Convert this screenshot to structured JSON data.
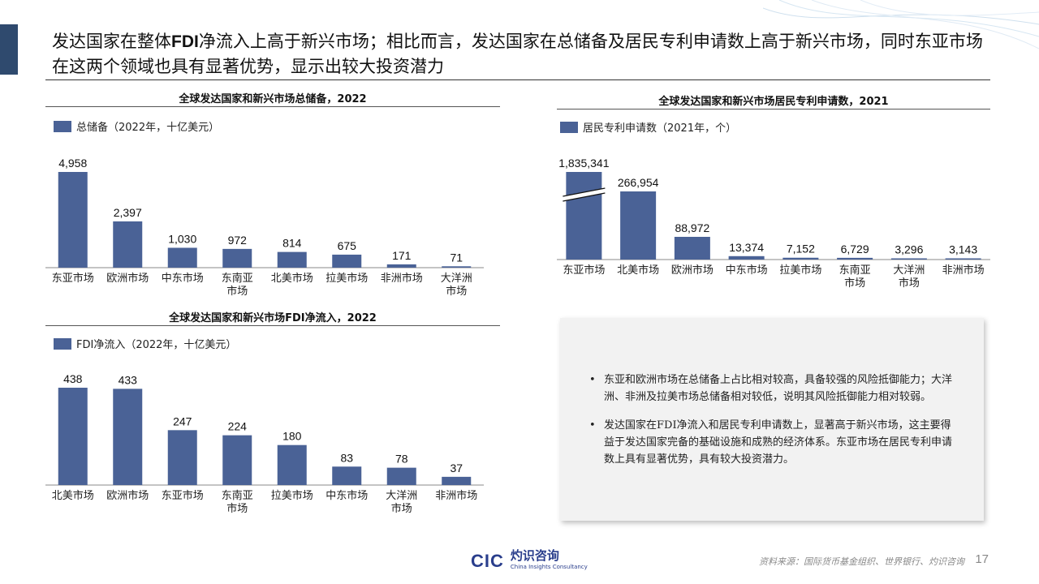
{
  "headline": {
    "part1": "发达国家在整体",
    "bold": "FDI",
    "part2": "净流入上高于新兴市场；相比而言，发达国家在总储备及居民专利申请数上高于新兴市场，同时东亚市场在这两个领域也具有显著优势，显示出较大投资潜力"
  },
  "colors": {
    "bar": "#4a6296",
    "accent": "#2f4a6e",
    "brand": "#2a3e8c"
  },
  "chart_data": [
    {
      "type": "bar",
      "title": "全球发达国家和新兴市场总储备，2022",
      "legend": "总储备（2022年，十亿美元）",
      "categories": [
        "东亚市场",
        "欧洲市场",
        "中东市场",
        "东南亚\n市场",
        "北美市场",
        "拉美市场",
        "非洲市场",
        "大洋洲\n市场"
      ],
      "values": [
        4958,
        2397,
        1030,
        972,
        814,
        675,
        171,
        71
      ],
      "labels": [
        "4,958",
        "2,397",
        "1,030",
        "972",
        "814",
        "675",
        "171",
        "71"
      ],
      "ylim": [
        0,
        4958
      ]
    },
    {
      "type": "bar",
      "title": "全球发达国家和新兴市场居民专利申请数，2021",
      "legend": "居民专利申请数（2021年，个）",
      "categories": [
        "东亚市场",
        "北美市场",
        "欧洲市场",
        "中东市场",
        "拉美市场",
        "东南亚\n市场",
        "大洋洲\n市场",
        "非洲市场"
      ],
      "values": [
        1835341,
        266954,
        88972,
        13374,
        7152,
        6729,
        3296,
        3143
      ],
      "labels": [
        "1,835,341",
        "266,954",
        "88,972",
        "13,374",
        "7,152",
        "6,729",
        "3,296",
        "3,143"
      ],
      "axis_break": true
    },
    {
      "type": "bar",
      "title": "全球发达国家和新兴市场FDI净流入，2022",
      "legend": "FDI净流入（2022年，十亿美元）",
      "categories": [
        "北美市场",
        "欧洲市场",
        "东亚市场",
        "东南亚\n市场",
        "拉美市场",
        "中东市场",
        "大洋洲\n市场",
        "非洲市场"
      ],
      "values": [
        438,
        433,
        247,
        224,
        180,
        83,
        78,
        37
      ],
      "labels": [
        "438",
        "433",
        "247",
        "224",
        "180",
        "83",
        "78",
        "37"
      ],
      "ylim": [
        0,
        438
      ]
    }
  ],
  "notes": [
    "东亚和欧洲市场在总储备上占比相对较高，具备较强的风险抵御能力；大洋洲、非洲及拉美市场总储备相对较低，说明其风险抵御能力相对较弱。",
    "发达国家在FDI净流入和居民专利申请数上，显著高于新兴市场，这主要得益于发达国家完备的基础设施和成熟的经济体系。东亚市场在居民专利申请数上具有显著优势，具有较大投资潜力。"
  ],
  "footer": {
    "logo_cic": "CIC",
    "logo_cn": "灼识咨询",
    "logo_en": "China Insights Consultancy",
    "source": "资料来源：国际货币基金组织、世界银行、灼识咨询",
    "page": "17"
  }
}
